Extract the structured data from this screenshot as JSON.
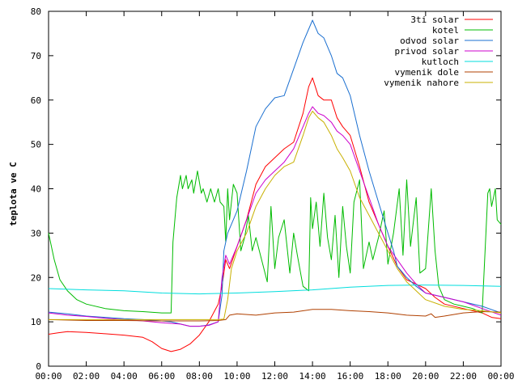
{
  "chart_data": {
    "type": "line",
    "title": "",
    "xlabel": "",
    "ylabel": "teplota ve C",
    "xlim": [
      0,
      24
    ],
    "ylim": [
      0,
      80
    ],
    "x_ticks": [
      "00:00",
      "02:00",
      "04:00",
      "06:00",
      "08:00",
      "10:00",
      "12:00",
      "14:00",
      "16:00",
      "18:00",
      "20:00",
      "22:00",
      "00:00"
    ],
    "y_ticks": [
      "0",
      "10",
      "20",
      "30",
      "40",
      "50",
      "60",
      "70",
      "80"
    ],
    "grid": false,
    "legend_position": "top-right",
    "series": [
      {
        "name": "3ti solar",
        "color": "#ff0000",
        "points": [
          [
            0,
            7.2
          ],
          [
            0.5,
            7.5
          ],
          [
            1,
            7.8
          ],
          [
            2,
            7.6
          ],
          [
            3,
            7.3
          ],
          [
            4,
            7
          ],
          [
            5,
            6.5
          ],
          [
            5.5,
            5.5
          ],
          [
            6,
            4
          ],
          [
            6.5,
            3.3
          ],
          [
            7,
            3.8
          ],
          [
            7.5,
            5
          ],
          [
            8,
            7
          ],
          [
            8.5,
            10
          ],
          [
            9,
            14
          ],
          [
            9.2,
            18
          ],
          [
            9.4,
            24
          ],
          [
            9.6,
            22
          ],
          [
            10,
            27
          ],
          [
            10.5,
            33
          ],
          [
            11,
            41
          ],
          [
            11.5,
            45
          ],
          [
            12,
            47
          ],
          [
            12.5,
            49
          ],
          [
            13,
            50.5
          ],
          [
            13.5,
            57
          ],
          [
            13.8,
            63
          ],
          [
            14,
            65
          ],
          [
            14.3,
            61
          ],
          [
            14.6,
            60
          ],
          [
            15,
            60
          ],
          [
            15.3,
            56
          ],
          [
            15.6,
            54
          ],
          [
            16,
            52
          ],
          [
            16.5,
            45
          ],
          [
            17,
            37
          ],
          [
            17.5,
            32
          ],
          [
            18,
            27
          ],
          [
            18.5,
            22.5
          ],
          [
            19,
            19.5
          ],
          [
            20,
            17.5
          ],
          [
            20.5,
            15.5
          ],
          [
            21,
            14
          ],
          [
            22,
            13
          ],
          [
            23,
            12
          ],
          [
            23.5,
            11
          ],
          [
            24,
            10.7
          ]
        ]
      },
      {
        "name": "kotel",
        "color": "#00bb00",
        "points": [
          [
            0,
            30
          ],
          [
            0.3,
            24
          ],
          [
            0.6,
            19.5
          ],
          [
            1,
            17
          ],
          [
            1.5,
            15
          ],
          [
            2,
            14
          ],
          [
            3,
            13
          ],
          [
            4,
            12.5
          ],
          [
            5,
            12.3
          ],
          [
            6,
            12
          ],
          [
            6.5,
            12
          ],
          [
            6.6,
            28
          ],
          [
            6.8,
            38
          ],
          [
            7,
            43
          ],
          [
            7.1,
            40
          ],
          [
            7.3,
            43
          ],
          [
            7.4,
            40
          ],
          [
            7.6,
            42
          ],
          [
            7.7,
            39
          ],
          [
            7.9,
            44
          ],
          [
            8.1,
            39
          ],
          [
            8.2,
            40
          ],
          [
            8.4,
            37
          ],
          [
            8.6,
            40
          ],
          [
            8.8,
            37
          ],
          [
            9,
            40
          ],
          [
            9.1,
            37
          ],
          [
            9.3,
            36
          ],
          [
            9.4,
            28
          ],
          [
            9.5,
            40
          ],
          [
            9.6,
            33
          ],
          [
            9.8,
            41
          ],
          [
            10,
            39
          ],
          [
            10.2,
            26
          ],
          [
            10.4,
            29
          ],
          [
            10.6,
            34
          ],
          [
            10.8,
            26
          ],
          [
            11,
            29
          ],
          [
            11.3,
            24
          ],
          [
            11.6,
            19
          ],
          [
            11.8,
            36
          ],
          [
            12,
            22
          ],
          [
            12.2,
            29
          ],
          [
            12.5,
            33
          ],
          [
            12.8,
            21
          ],
          [
            13,
            30
          ],
          [
            13.2,
            25
          ],
          [
            13.5,
            18
          ],
          [
            13.8,
            17
          ],
          [
            13.9,
            38
          ],
          [
            14,
            31
          ],
          [
            14.2,
            37
          ],
          [
            14.4,
            27
          ],
          [
            14.6,
            39
          ],
          [
            14.8,
            29
          ],
          [
            15,
            24
          ],
          [
            15.2,
            34
          ],
          [
            15.4,
            20
          ],
          [
            15.6,
            36
          ],
          [
            15.8,
            27
          ],
          [
            16,
            21
          ],
          [
            16.2,
            37
          ],
          [
            16.5,
            42
          ],
          [
            16.7,
            22
          ],
          [
            17,
            28
          ],
          [
            17.2,
            24
          ],
          [
            17.5,
            29
          ],
          [
            17.8,
            35
          ],
          [
            18,
            23
          ],
          [
            18.3,
            30
          ],
          [
            18.6,
            40
          ],
          [
            18.8,
            25
          ],
          [
            19,
            42
          ],
          [
            19.2,
            27
          ],
          [
            19.5,
            38
          ],
          [
            19.7,
            21
          ],
          [
            20,
            22
          ],
          [
            20.3,
            40
          ],
          [
            20.5,
            26
          ],
          [
            20.7,
            18
          ],
          [
            21,
            15
          ],
          [
            21.5,
            14
          ],
          [
            22,
            13.5
          ],
          [
            22.5,
            13
          ],
          [
            23,
            12
          ],
          [
            23.3,
            39
          ],
          [
            23.4,
            40
          ],
          [
            23.5,
            36
          ],
          [
            23.7,
            40
          ],
          [
            23.8,
            33
          ],
          [
            24,
            32
          ]
        ]
      },
      {
        "name": "odvod solar",
        "color": "#1a6fd0",
        "points": [
          [
            0,
            12.2
          ],
          [
            1,
            11.8
          ],
          [
            2,
            11.3
          ],
          [
            3,
            11
          ],
          [
            4,
            10.7
          ],
          [
            5,
            10.5
          ],
          [
            6,
            10.2
          ],
          [
            6.5,
            10
          ],
          [
            7,
            9.5
          ],
          [
            7.5,
            9
          ],
          [
            8,
            9
          ],
          [
            8.5,
            9.3
          ],
          [
            9,
            10
          ],
          [
            9.2,
            16
          ],
          [
            9.3,
            26
          ],
          [
            9.5,
            30
          ],
          [
            10,
            35
          ],
          [
            10.5,
            44
          ],
          [
            11,
            54
          ],
          [
            11.5,
            58
          ],
          [
            12,
            60.5
          ],
          [
            12.5,
            61
          ],
          [
            13,
            67
          ],
          [
            13.5,
            73
          ],
          [
            13.8,
            76
          ],
          [
            14,
            78
          ],
          [
            14.3,
            75
          ],
          [
            14.6,
            74
          ],
          [
            15,
            70
          ],
          [
            15.3,
            66
          ],
          [
            15.6,
            65
          ],
          [
            16,
            61
          ],
          [
            16.5,
            52
          ],
          [
            17,
            44
          ],
          [
            17.5,
            37
          ],
          [
            18,
            30
          ],
          [
            18.3,
            26
          ],
          [
            18.5,
            22.5
          ],
          [
            19,
            20
          ],
          [
            19.5,
            18
          ],
          [
            20,
            16.5
          ],
          [
            21,
            15.5
          ],
          [
            22,
            14.5
          ],
          [
            23,
            13.5
          ],
          [
            24,
            12
          ]
        ]
      },
      {
        "name": "privod solar",
        "color": "#cc00cc",
        "points": [
          [
            0,
            12
          ],
          [
            1,
            11.5
          ],
          [
            2,
            11.2
          ],
          [
            3,
            10.8
          ],
          [
            4,
            10.5
          ],
          [
            5,
            10.2
          ],
          [
            6,
            9.8
          ],
          [
            7,
            9.5
          ],
          [
            7.5,
            9
          ],
          [
            8,
            9
          ],
          [
            8.5,
            9.2
          ],
          [
            9,
            10
          ],
          [
            9.2,
            20
          ],
          [
            9.4,
            25
          ],
          [
            9.6,
            23
          ],
          [
            10,
            27
          ],
          [
            10.5,
            33
          ],
          [
            11,
            39
          ],
          [
            11.5,
            42
          ],
          [
            12,
            44
          ],
          [
            12.5,
            46
          ],
          [
            13,
            49
          ],
          [
            13.5,
            54
          ],
          [
            13.8,
            57
          ],
          [
            14,
            58.5
          ],
          [
            14.3,
            57
          ],
          [
            14.6,
            56.5
          ],
          [
            15,
            55
          ],
          [
            15.3,
            53
          ],
          [
            15.6,
            52
          ],
          [
            16,
            50
          ],
          [
            16.5,
            44
          ],
          [
            17,
            38
          ],
          [
            17.5,
            32
          ],
          [
            18,
            27
          ],
          [
            18.5,
            24
          ],
          [
            19,
            21
          ],
          [
            19.5,
            18.5
          ],
          [
            20,
            16.5
          ],
          [
            21,
            15.5
          ],
          [
            22,
            14.5
          ],
          [
            23,
            13
          ],
          [
            24,
            11.5
          ]
        ]
      },
      {
        "name": "kutloch",
        "color": "#00dddd",
        "points": [
          [
            0,
            17.5
          ],
          [
            2,
            17.2
          ],
          [
            4,
            17
          ],
          [
            6,
            16.5
          ],
          [
            8,
            16.3
          ],
          [
            10,
            16.5
          ],
          [
            12,
            16.8
          ],
          [
            14,
            17.2
          ],
          [
            16,
            17.8
          ],
          [
            18,
            18.2
          ],
          [
            20,
            18.3
          ],
          [
            22,
            18.2
          ],
          [
            24,
            18
          ]
        ]
      },
      {
        "name": "vymenik dole",
        "color": "#b04000",
        "points": [
          [
            0,
            10.5
          ],
          [
            2,
            10.3
          ],
          [
            4,
            10.3
          ],
          [
            6,
            10.2
          ],
          [
            8,
            10.2
          ],
          [
            9,
            10.3
          ],
          [
            9.4,
            10.5
          ],
          [
            9.6,
            11.5
          ],
          [
            10,
            11.8
          ],
          [
            11,
            11.5
          ],
          [
            12,
            12
          ],
          [
            13,
            12.2
          ],
          [
            14,
            12.8
          ],
          [
            15,
            12.8
          ],
          [
            16,
            12.5
          ],
          [
            17,
            12.3
          ],
          [
            18,
            12
          ],
          [
            19,
            11.5
          ],
          [
            20,
            11.3
          ],
          [
            20.3,
            11.8
          ],
          [
            20.5,
            11
          ],
          [
            21,
            11.3
          ],
          [
            22,
            12
          ],
          [
            23,
            12.3
          ],
          [
            24,
            12.2
          ]
        ]
      },
      {
        "name": "vymenik nahore",
        "color": "#c8b000",
        "points": [
          [
            0,
            10.5
          ],
          [
            2,
            10.5
          ],
          [
            4,
            10.5
          ],
          [
            6,
            10.5
          ],
          [
            8,
            10.5
          ],
          [
            9,
            10.5
          ],
          [
            9.3,
            10.6
          ],
          [
            9.5,
            15
          ],
          [
            9.7,
            22
          ],
          [
            10,
            26
          ],
          [
            10.5,
            30
          ],
          [
            11,
            36
          ],
          [
            11.5,
            40
          ],
          [
            12,
            43
          ],
          [
            12.5,
            45
          ],
          [
            13,
            46
          ],
          [
            13.5,
            52
          ],
          [
            13.8,
            56
          ],
          [
            14,
            57.5
          ],
          [
            14.3,
            56
          ],
          [
            14.6,
            55
          ],
          [
            15,
            52
          ],
          [
            15.3,
            49
          ],
          [
            15.6,
            47
          ],
          [
            16,
            44
          ],
          [
            16.5,
            38
          ],
          [
            17,
            34
          ],
          [
            17.5,
            30
          ],
          [
            18,
            26
          ],
          [
            18.5,
            22
          ],
          [
            19,
            19
          ],
          [
            19.5,
            17
          ],
          [
            20,
            15
          ],
          [
            21,
            13.5
          ],
          [
            22,
            12.8
          ],
          [
            23,
            12.5
          ],
          [
            24,
            12
          ]
        ]
      }
    ]
  }
}
